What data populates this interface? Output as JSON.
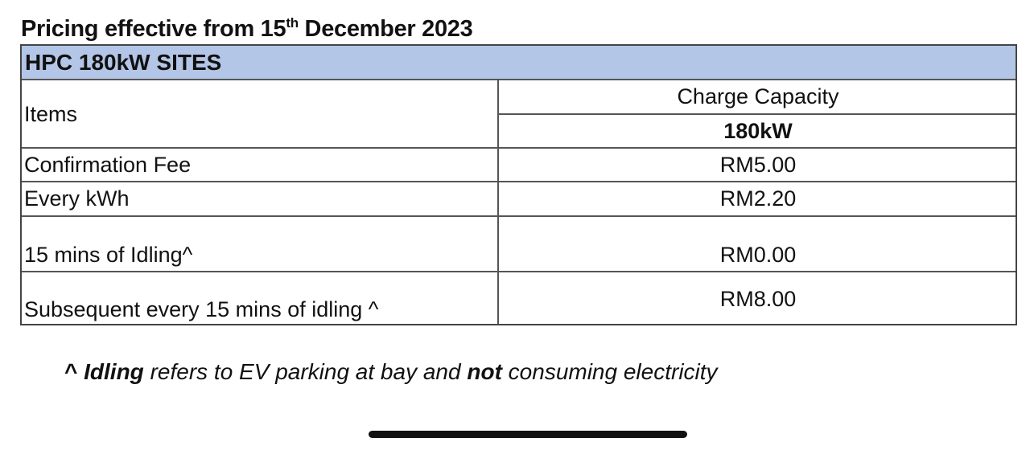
{
  "title": {
    "text": "Pricing effective from 15",
    "sup": "th",
    "rest": " December 2023"
  },
  "table": {
    "section": "HPC 180kW SITES",
    "items_header": "Items",
    "capacity_header": "Charge Capacity",
    "capacity_value": "180kW",
    "rows": [
      {
        "item": "Confirmation Fee",
        "price": "RM5.00"
      },
      {
        "item": "Every kWh",
        "price": "RM2.20"
      },
      {
        "item": "15 mins of Idling^",
        "price": "RM0.00"
      },
      {
        "item": "Subsequent every 15 mins of idling ^",
        "price": "RM8.00"
      }
    ],
    "header_color": "#b4c6e7"
  },
  "footnote": {
    "caret": "^ ",
    "bold1": "Idling",
    "mid": " refers to EV parking at bay and ",
    "bold2": "not",
    "end": " consuming electricity"
  }
}
